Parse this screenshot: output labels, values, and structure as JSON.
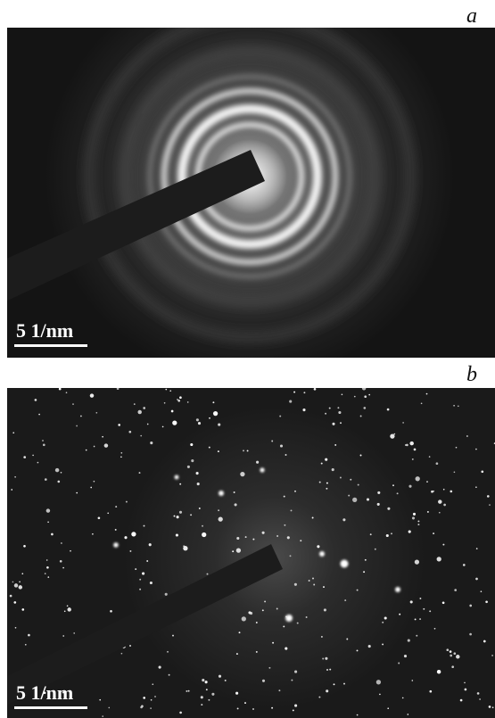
{
  "figure": {
    "panels": [
      {
        "label": "a",
        "description_type": "ring diffraction pattern",
        "scale_bar": "5 1/nm"
      },
      {
        "label": "b",
        "description_type": "spot diffraction pattern",
        "scale_bar": "5 1/nm"
      }
    ]
  },
  "colors": {
    "background": "#141414",
    "ring": "#e8e8e8",
    "beam_stop": "#1c1c1c",
    "text_on_image": "#ffffff",
    "label": "#111111"
  }
}
